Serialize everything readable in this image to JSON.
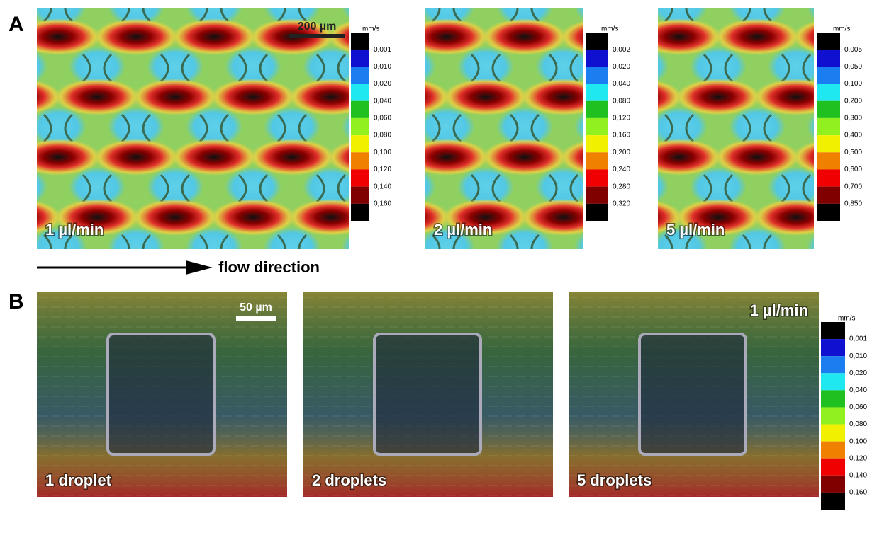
{
  "panel_a": {
    "label": "A",
    "scale_bar": "200 µm",
    "flow_direction": "flow direction",
    "images": [
      {
        "label": "1 µl/min"
      },
      {
        "label": "2 µl/min"
      },
      {
        "label": "5 µl/min"
      }
    ],
    "colorbars": [
      {
        "unit": "mm/s",
        "ticks": [
          "0,001",
          "0,010",
          "0,020",
          "0,040",
          "0,060",
          "0,080",
          "0,100",
          "0,120",
          "0,140",
          "0,160"
        ]
      },
      {
        "unit": "mm/s",
        "ticks": [
          "0,002",
          "0,020",
          "0,040",
          "0,080",
          "0,120",
          "0,160",
          "0,200",
          "0,240",
          "0,280",
          "0,320"
        ]
      },
      {
        "unit": "mm/s",
        "ticks": [
          "0,005",
          "0,050",
          "0,100",
          "0,200",
          "0,300",
          "0,400",
          "0,500",
          "0,600",
          "0,700",
          "0,850"
        ]
      }
    ]
  },
  "panel_b": {
    "label": "B",
    "scale_bar": "50 µm",
    "flow_rate": "1 µl/min",
    "images": [
      {
        "label": "1 droplet"
      },
      {
        "label": "2 droplets"
      },
      {
        "label": "5 droplets"
      }
    ],
    "colorbar": {
      "unit": "mm/s",
      "ticks": [
        "0,001",
        "0,010",
        "0,020",
        "0,040",
        "0,060",
        "0,080",
        "0,100",
        "0,120",
        "0,140",
        "0,160"
      ]
    }
  }
}
